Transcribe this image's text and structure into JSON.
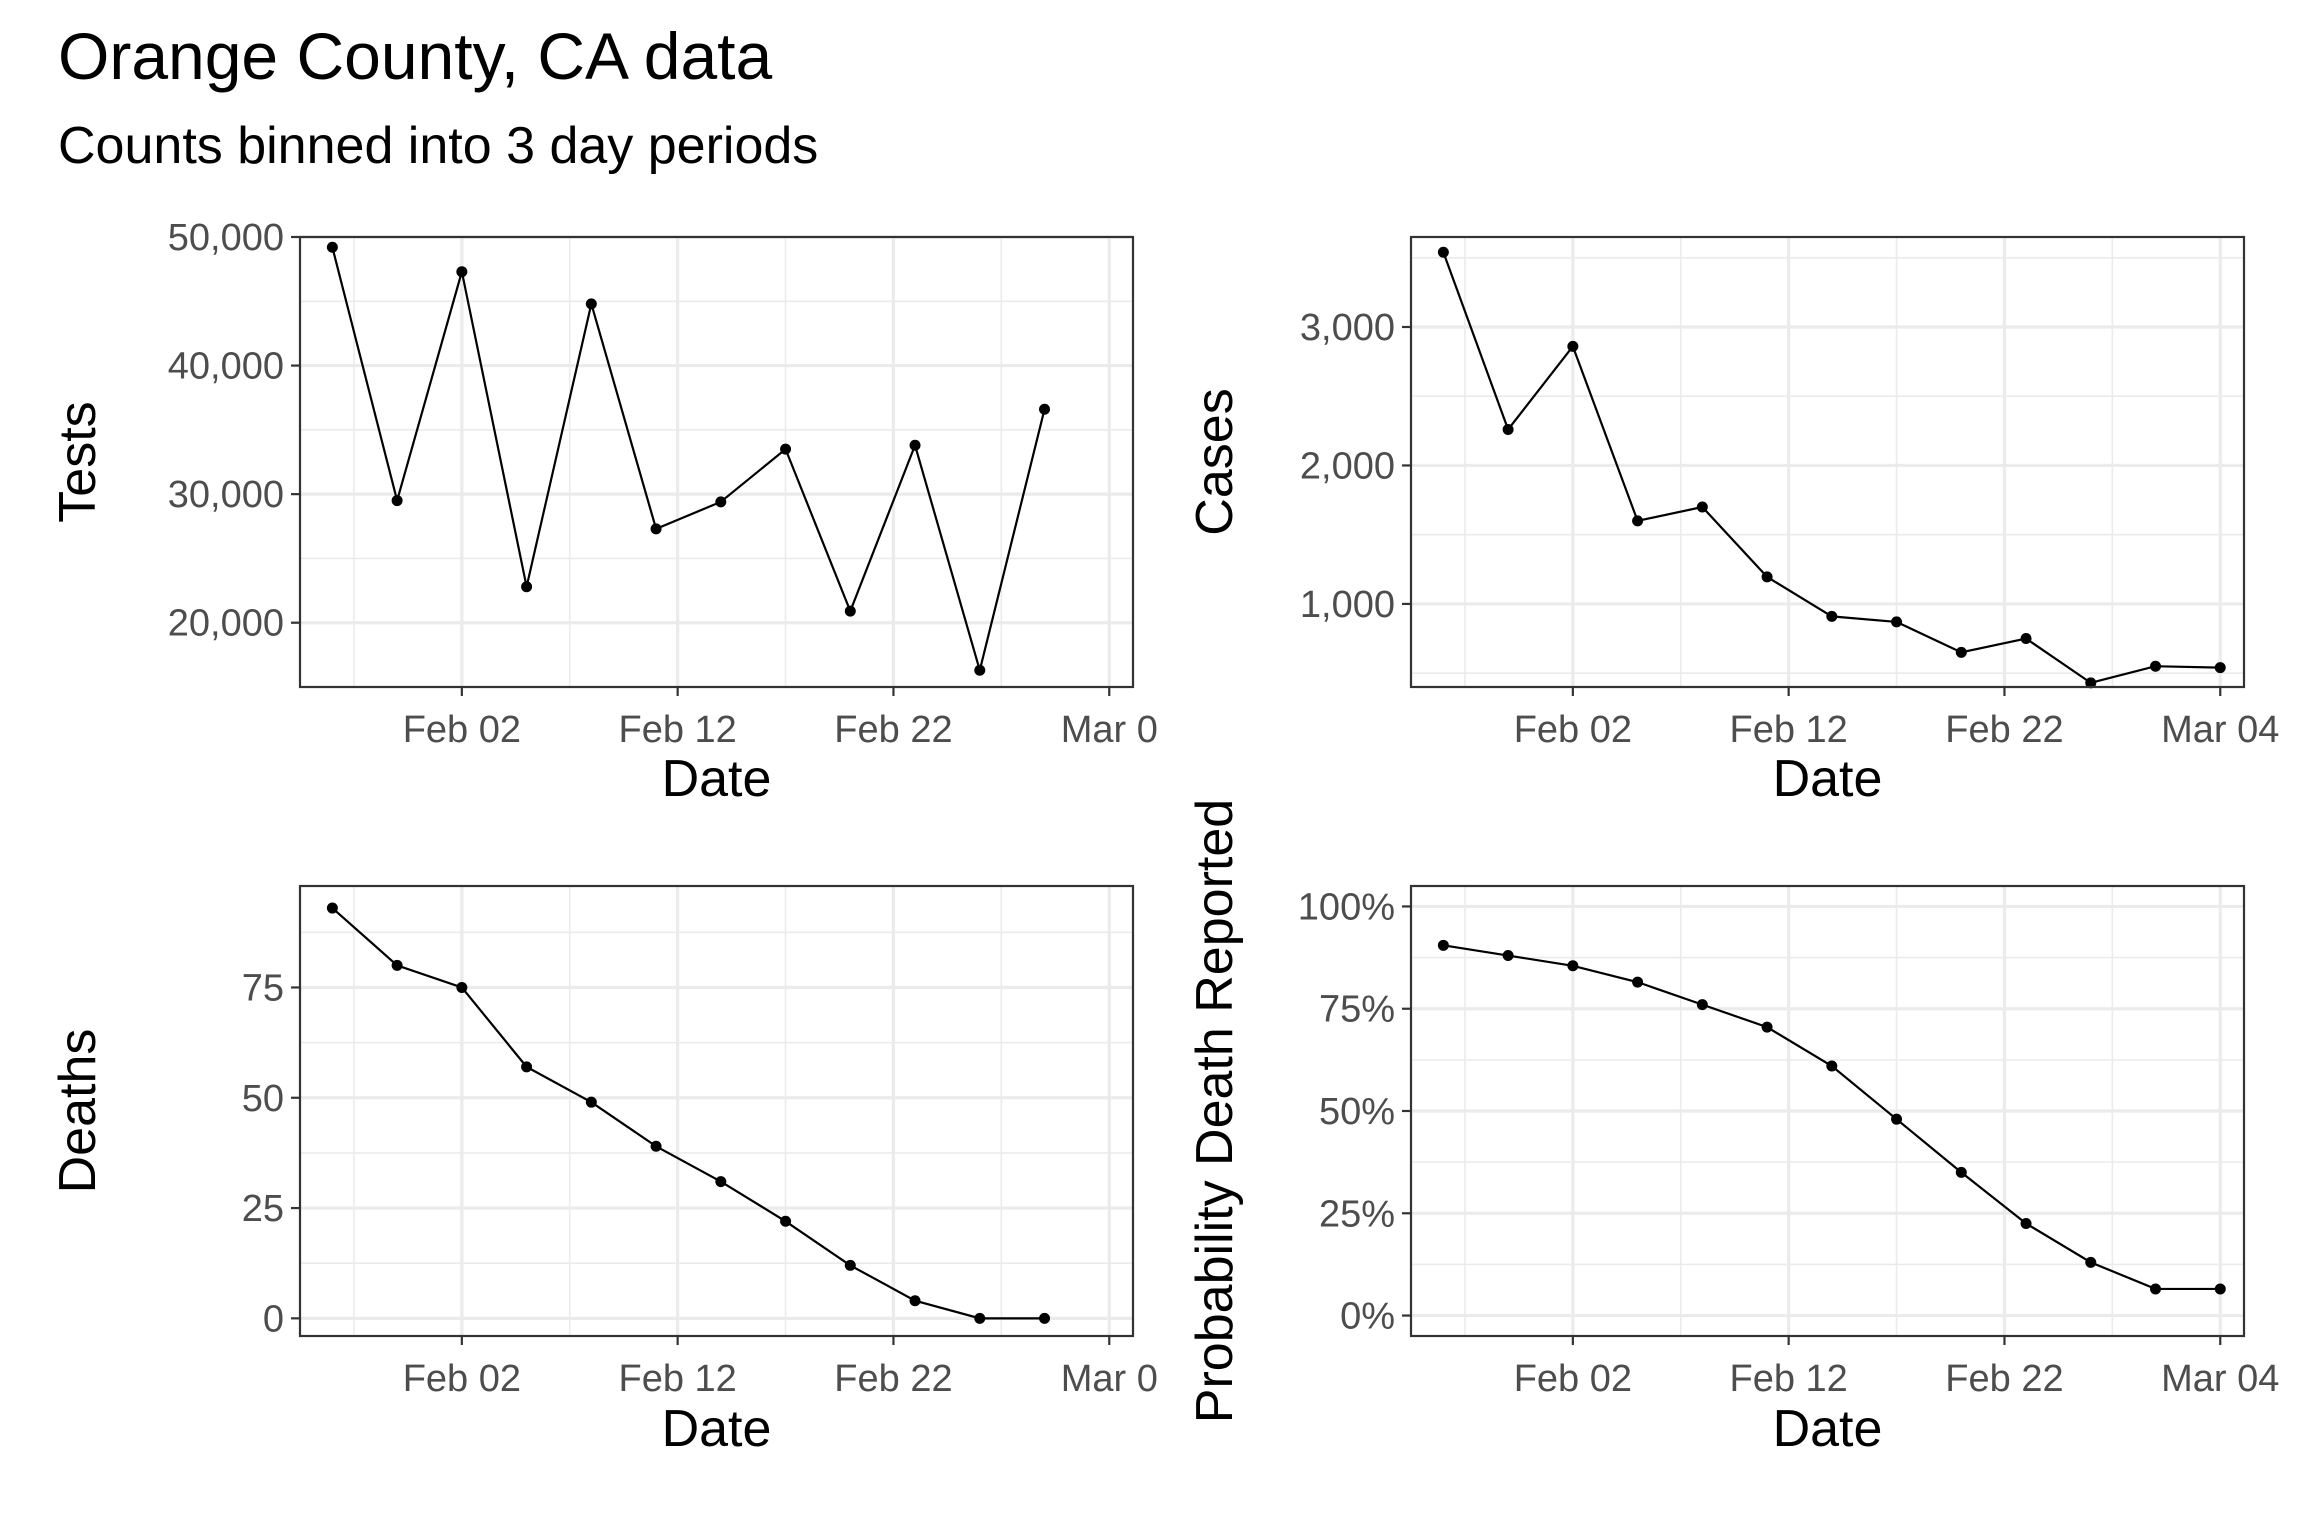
{
  "title": "Orange County, CA data",
  "subtitle": "Counts binned into 3 day periods",
  "chart_data": [
    {
      "type": "line",
      "xlabel": "Date",
      "ylabel": "Tests",
      "x_tick_labels": [
        "Feb 02",
        "Feb 12",
        "Feb 22",
        "Mar 0"
      ],
      "y_tick_labels": [
        "20,000",
        "30,000",
        "40,000",
        "50,000"
      ],
      "ylim": [
        15000,
        50000
      ],
      "grid": true,
      "x": [
        "2021-01-27",
        "2021-01-30",
        "2021-02-02",
        "2021-02-05",
        "2021-02-08",
        "2021-02-11",
        "2021-02-14",
        "2021-02-17",
        "2021-02-20",
        "2021-02-23",
        "2021-02-26",
        "2021-03-01"
      ],
      "values": [
        49200,
        29500,
        47300,
        22800,
        44800,
        27300,
        29400,
        33500,
        20900,
        33800,
        16300,
        36600
      ]
    },
    {
      "type": "line",
      "xlabel": "Date",
      "ylabel": "Cases",
      "x_tick_labels": [
        "Feb 02",
        "Feb 12",
        "Feb 22",
        "Mar 04"
      ],
      "y_tick_labels": [
        "1,000",
        "2,000",
        "3,000"
      ],
      "ylim": [
        400,
        3650
      ],
      "grid": true,
      "x": [
        "2021-01-27",
        "2021-01-30",
        "2021-02-02",
        "2021-02-05",
        "2021-02-08",
        "2021-02-11",
        "2021-02-14",
        "2021-02-17",
        "2021-02-20",
        "2021-02-23",
        "2021-02-26",
        "2021-03-01",
        "2021-03-04"
      ],
      "values": [
        3540,
        2260,
        2860,
        1600,
        1700,
        1195,
        910,
        870,
        650,
        750,
        430,
        550,
        540
      ]
    },
    {
      "type": "line",
      "xlabel": "Date",
      "ylabel": "Deaths",
      "x_tick_labels": [
        "Feb 02",
        "Feb 12",
        "Feb 22",
        "Mar 0"
      ],
      "y_tick_labels": [
        "0",
        "25",
        "50",
        "75"
      ],
      "ylim": [
        -4,
        98
      ],
      "grid": true,
      "x": [
        "2021-01-27",
        "2021-01-30",
        "2021-02-02",
        "2021-02-05",
        "2021-02-08",
        "2021-02-11",
        "2021-02-14",
        "2021-02-17",
        "2021-02-20",
        "2021-02-23",
        "2021-02-26",
        "2021-03-01"
      ],
      "values": [
        93,
        80,
        75,
        57,
        49,
        39,
        31,
        22,
        12,
        4,
        0,
        0
      ]
    },
    {
      "type": "line",
      "xlabel": "Date",
      "ylabel": "Probability Death Reported",
      "x_tick_labels": [
        "Feb 02",
        "Feb 12",
        "Feb 22",
        "Mar 04"
      ],
      "y_tick_labels": [
        "0%",
        "25%",
        "50%",
        "75%",
        "100%"
      ],
      "ylim": [
        -0.05,
        1.05
      ],
      "grid": true,
      "x": [
        "2021-01-27",
        "2021-01-30",
        "2021-02-02",
        "2021-02-05",
        "2021-02-08",
        "2021-02-11",
        "2021-02-14",
        "2021-02-17",
        "2021-02-20",
        "2021-02-23",
        "2021-02-26",
        "2021-03-01",
        "2021-03-04"
      ],
      "values": [
        0.905,
        0.88,
        0.855,
        0.815,
        0.76,
        0.705,
        0.61,
        0.48,
        0.35,
        0.225,
        0.13,
        0.065,
        0.065
      ]
    }
  ]
}
